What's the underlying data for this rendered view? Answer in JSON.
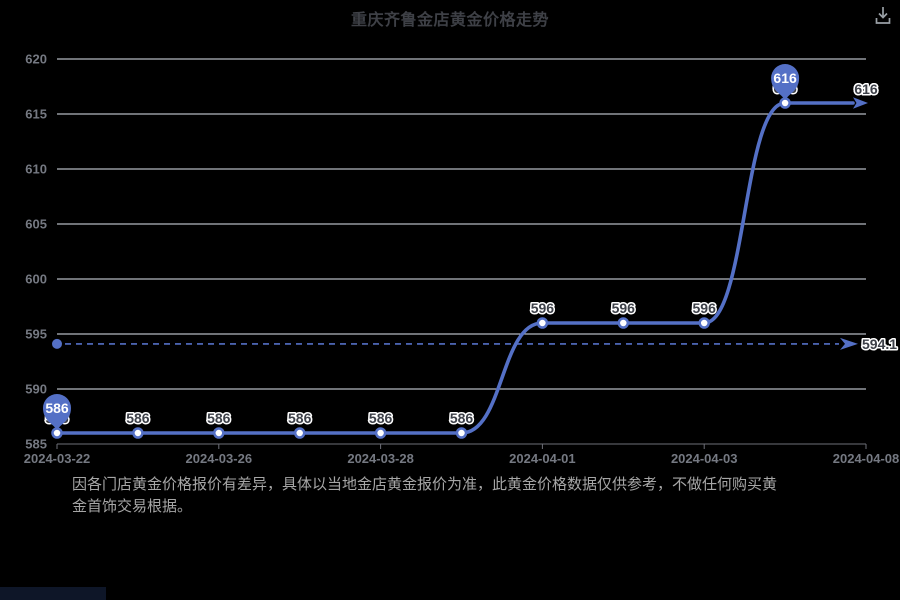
{
  "header": {
    "title": "重庆齐鲁金店黄金价格走势"
  },
  "toolbar": {
    "download_icon": "download"
  },
  "footer": {
    "disclaimer": "因各门店黄金价格报价有差异，具体以当地金店黄金报价为准，此黄金价格数据仅供参考，不做任何购买黄金首饰交易根据。"
  },
  "colors": {
    "background": "#000000",
    "line": "#5470c6",
    "point_fill": "#ffffff",
    "grid": "#e0e6f1",
    "axis": "#6e7079",
    "axis_text": "#757982",
    "label_text": "#3d4048",
    "label_outline": "#ffffff",
    "pin_fill": "#5470c6",
    "pin_text": "#ffffff",
    "title_text": "#3e4046",
    "footer_text": "#a6a6a6",
    "icon": "#9aa0a6"
  },
  "chart_data": {
    "type": "line",
    "title": "重庆齐鲁金店黄金价格走势",
    "x_tick_labels": [
      "2024-03-22",
      "2024-03-26",
      "2024-03-28",
      "2024-04-01",
      "2024-04-03",
      "2024-04-08"
    ],
    "x_tick_point_indices": [
      0,
      2,
      4,
      6,
      8,
      10
    ],
    "y_ticks": [
      585,
      590,
      595,
      600,
      605,
      610,
      615,
      620
    ],
    "ylim": [
      585,
      620
    ],
    "grid": true,
    "legend": false,
    "smooth": true,
    "series": [
      {
        "values": [
          586,
          586,
          586,
          586,
          586,
          586,
          596,
          596,
          596,
          616,
          616
        ]
      }
    ],
    "point_labels": [
      "586",
      "586",
      "586",
      "586",
      "586",
      "586",
      "596",
      "596",
      "596",
      "616",
      "616"
    ],
    "pin_markers": [
      {
        "point_index": 0,
        "label": "586"
      },
      {
        "point_index": 9,
        "label": "616"
      }
    ],
    "end_annotation": {
      "label": "616",
      "style": "arrow"
    },
    "reference_line": {
      "value": 594.1,
      "label": "594.1",
      "style": "dashed-arrow"
    }
  }
}
